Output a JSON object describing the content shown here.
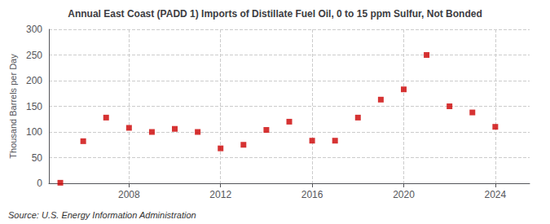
{
  "chart_data": {
    "type": "scatter",
    "title": "Annual East Coast (PADD 1) Imports of Distillate Fuel Oil, 0 to 15 ppm Sulfur, Not Bonded",
    "ylabel": "Thousand Barrels per Day",
    "annotation": "Source: U.S. Energy Information Administration",
    "x": [
      2005,
      2006,
      2007,
      2008,
      2009,
      2010,
      2011,
      2012,
      2013,
      2014,
      2015,
      2016,
      2017,
      2018,
      2019,
      2020,
      2021,
      2022,
      2023,
      2024
    ],
    "values": [
      1,
      82,
      128,
      108,
      100,
      106,
      100,
      68,
      75,
      104,
      120,
      83,
      83,
      128,
      163,
      183,
      250,
      150,
      138,
      110
    ],
    "color": "#cc0000",
    "marker": "square",
    "xlim": [
      2004.5,
      2025.5
    ],
    "xticks": [
      2008,
      2012,
      2016,
      2020,
      2024
    ],
    "ylim": [
      0,
      300
    ],
    "yticks": [
      0,
      50,
      100,
      150,
      200,
      250,
      300
    ],
    "grid": true
  }
}
